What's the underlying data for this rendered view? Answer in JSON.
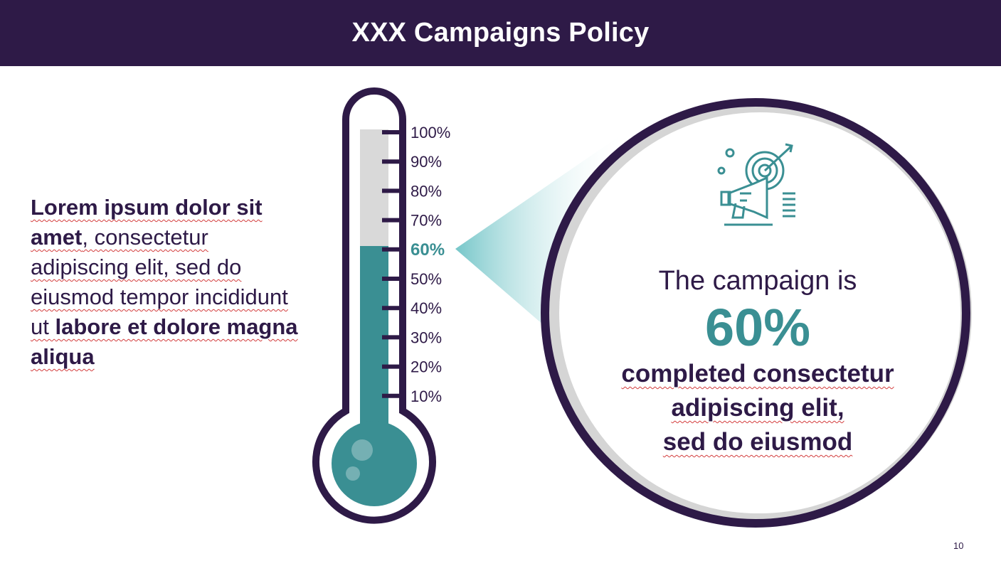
{
  "header": {
    "title": "XXX Campaigns Policy"
  },
  "left_text": {
    "part1_bold": "Lorem ipsum dolor sit amet",
    "part2": ", consectetur adipiscing elit, sed do eiusmod tempor incididunt ut ",
    "part3_bold": "labore et dolore magna aliqua"
  },
  "thermometer": {
    "ticks": [
      "100%",
      "90%",
      "80%",
      "70%",
      "60%",
      "50%",
      "40%",
      "30%",
      "20%",
      "10%"
    ],
    "highlighted_tick": "60%",
    "level_fraction": 0.6,
    "colors": {
      "frame": "#2e1a47",
      "fill": "#3a8f93",
      "empty": "#d9d9d9"
    }
  },
  "callout": {
    "icon": "megaphone-target-icon",
    "intro": "The campaign is",
    "value": "60%",
    "line1": "completed consectetur",
    "line2": "adipiscing elit,",
    "line3": "sed do eiusmod"
  },
  "page_number": "10",
  "colors": {
    "primary": "#2e1a47",
    "accent": "#3a8f93",
    "ring_shadow": "#d5d5d5"
  }
}
